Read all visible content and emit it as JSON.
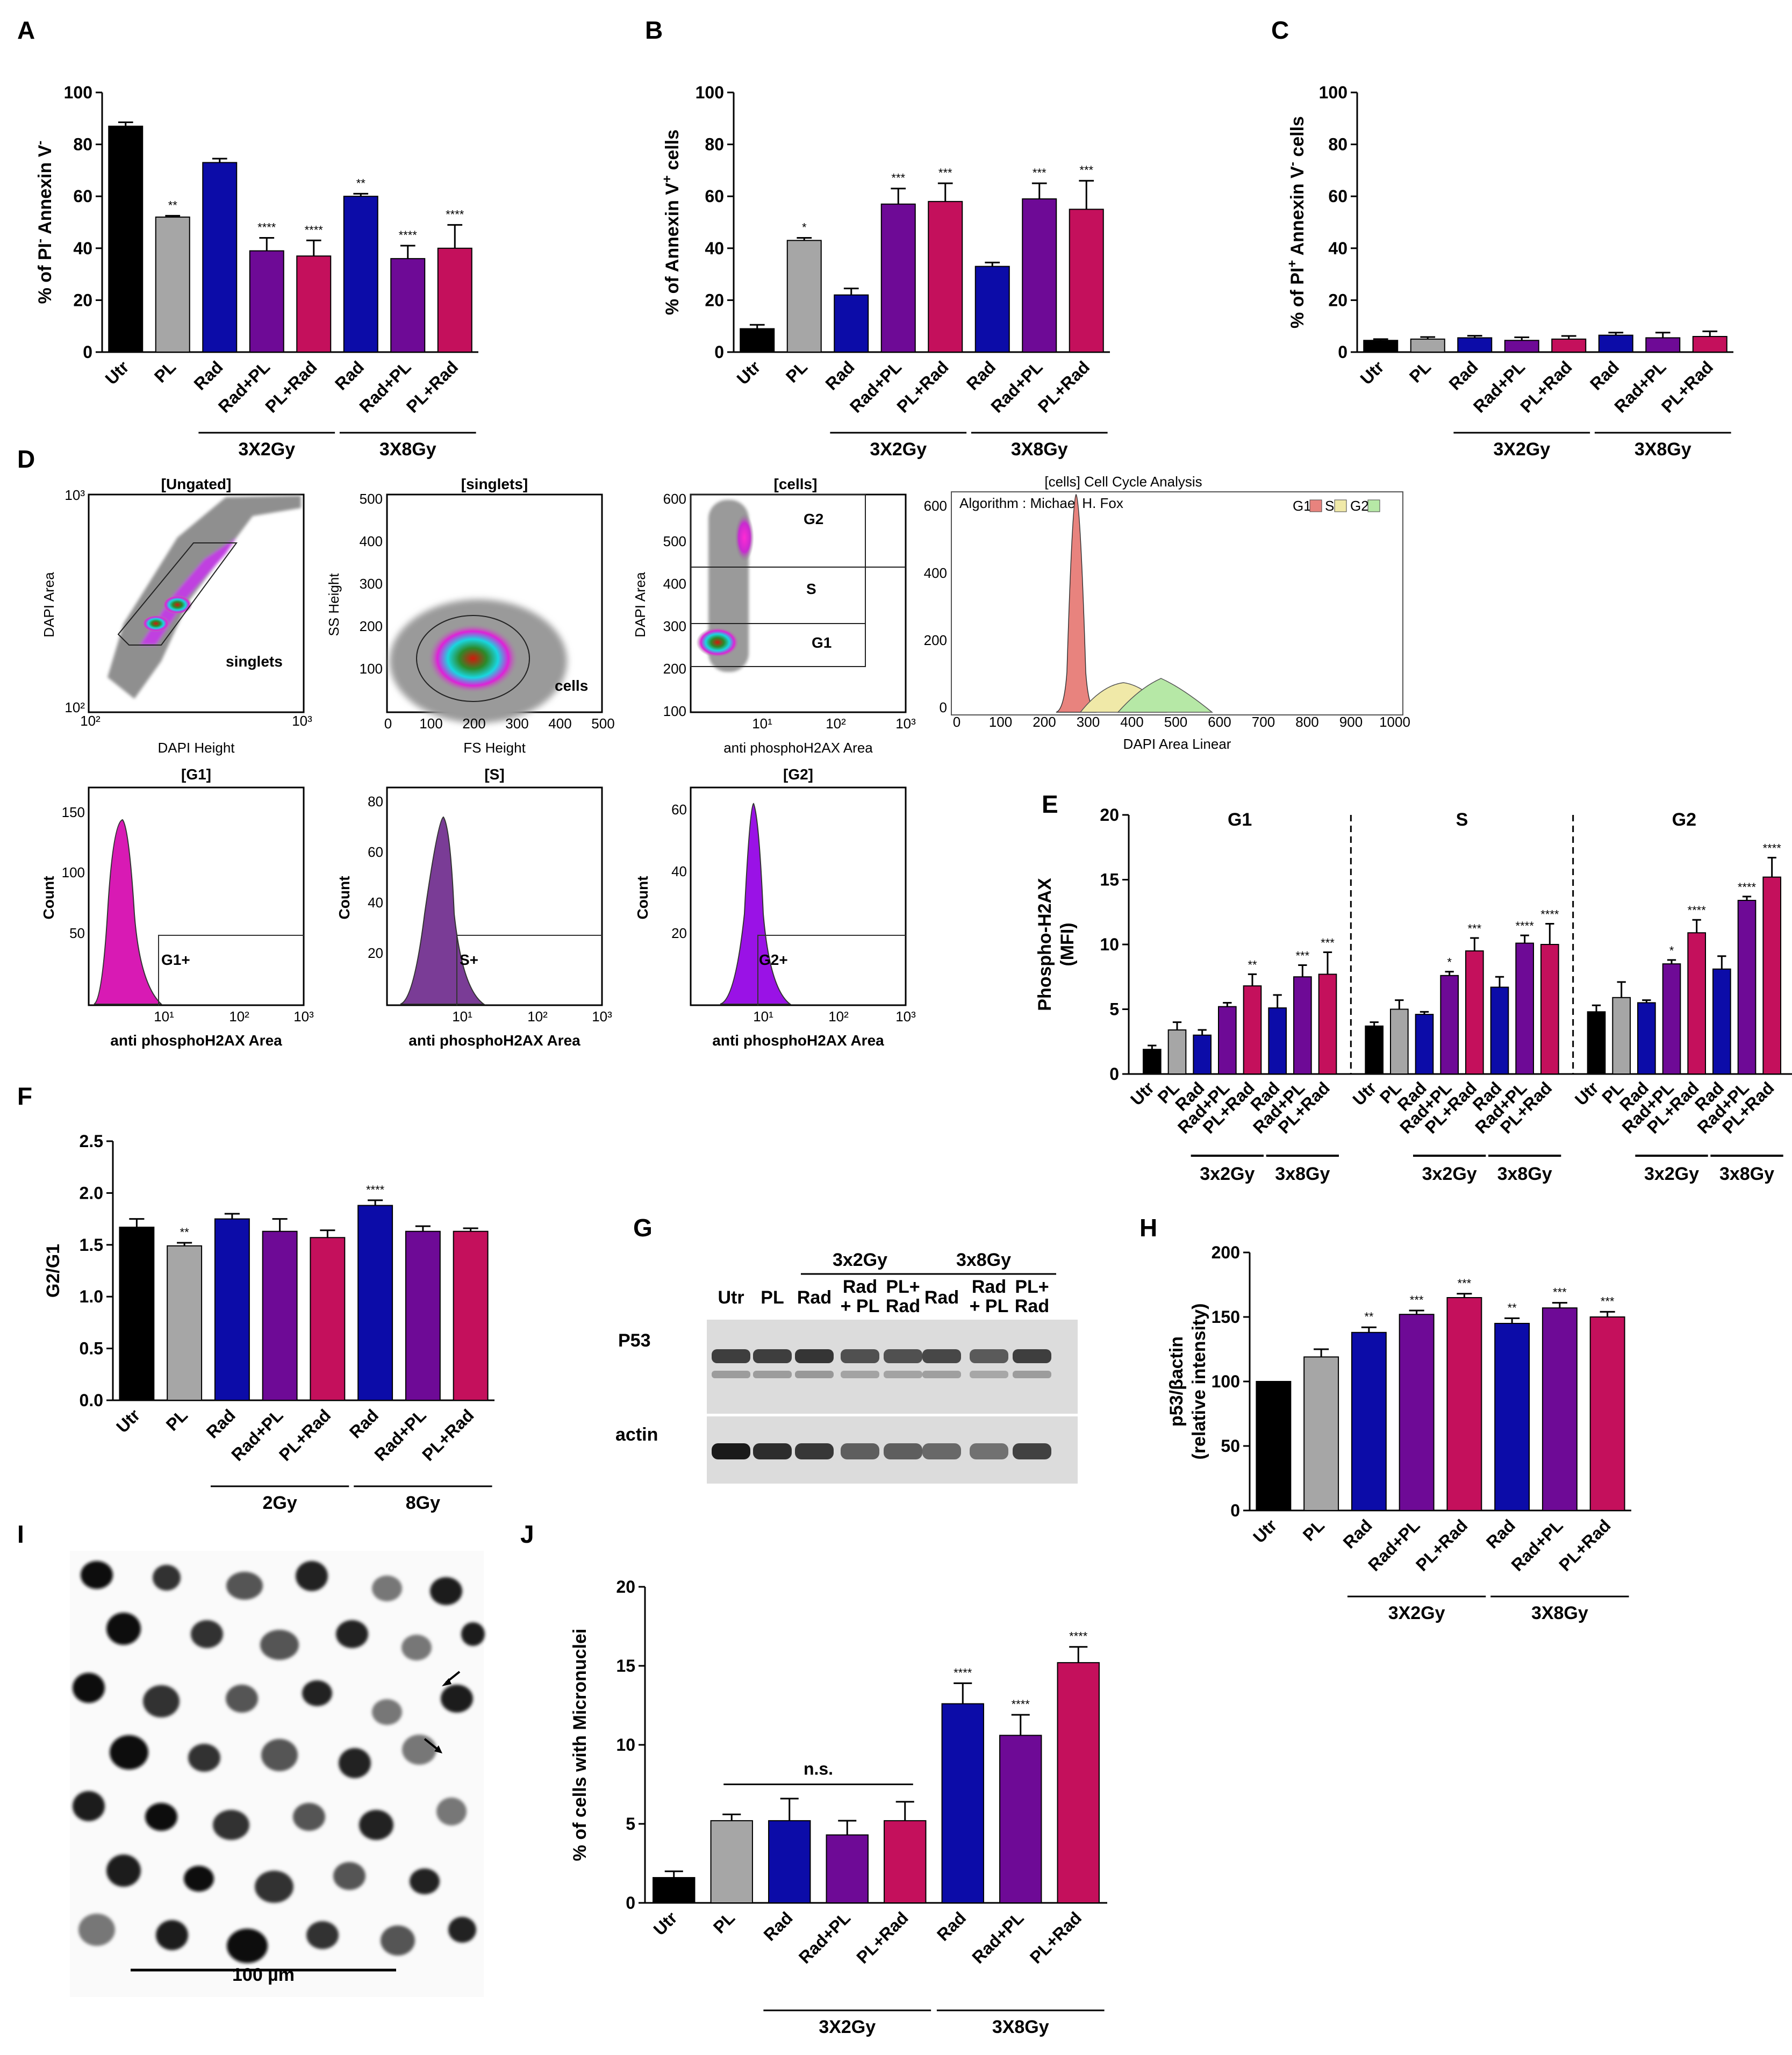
{
  "colors": {
    "black": "#000000",
    "gray": "#a6a6a6",
    "blue": "#0c0ca8",
    "purple": "#6e0a96",
    "crimson": "#c4105c",
    "magenta": "#d81ab4",
    "violet": "#7a3c96",
    "bright_violet": "#9a12e6"
  },
  "panel_letters": {
    "A": "A",
    "B": "B",
    "C": "C",
    "D": "D",
    "E": "E",
    "F": "F",
    "G": "G",
    "H": "H",
    "I": "I",
    "J": "J"
  },
  "flow": {
    "p1": {
      "title": "[Ungated]",
      "ylabel": "DAPI Area",
      "xlabel": "DAPI Height",
      "gate": "singlets",
      "y_ticks": [
        "10³",
        "10²"
      ],
      "x_ticks": [
        "10²",
        "10³"
      ]
    },
    "p2": {
      "title": "[singlets]",
      "ylabel": "SS Height",
      "xlabel": "FS Height",
      "gate": "cells",
      "y_ticks": [
        "500",
        "400",
        "300",
        "200",
        "100"
      ],
      "x_ticks": [
        "0",
        "100",
        "200",
        "300",
        "400",
        "500"
      ]
    },
    "p3": {
      "title": "[cells]",
      "ylabel": "DAPI Area",
      "xlabel": "anti phosphoH2AX Area",
      "gates": [
        "G2",
        "S",
        "G1"
      ],
      "y_ticks": [
        "600",
        "500",
        "400",
        "300",
        "200",
        "100"
      ],
      "x_ticks": [
        "10¹",
        "10²",
        "10³"
      ]
    },
    "p4": {
      "title": "[cells] Cell Cycle Analysis",
      "algorithm": "Algorithm : Michael H. Fox",
      "legend": [
        "G1",
        "S",
        "G2"
      ],
      "xlabel": "DAPI Area Linear",
      "y_ticks": [
        "600",
        "400",
        "200",
        "0"
      ],
      "x_ticks": [
        "0",
        "100",
        "200",
        "300",
        "400",
        "500",
        "600",
        "700",
        "800",
        "900",
        "1000"
      ]
    },
    "h1": {
      "title": "[G1]",
      "ylabel": "Count",
      "xlabel": "anti phosphoH2AX Area",
      "gate": "G1+",
      "y_ticks": [
        "150",
        "100",
        "50"
      ],
      "x_ticks": [
        "10¹",
        "10²",
        "10³"
      ]
    },
    "h2": {
      "title": "[S]",
      "ylabel": "Count",
      "xlabel": "anti phosphoH2AX Area",
      "gate": "S+",
      "y_ticks": [
        "80",
        "60",
        "40",
        "20"
      ],
      "x_ticks": [
        "10¹",
        "10²",
        "10³"
      ]
    },
    "h3": {
      "title": "[G2]",
      "ylabel": "Count",
      "xlabel": "anti phosphoH2AX Area",
      "gate": "G2+",
      "y_ticks": [
        "60",
        "40",
        "20"
      ],
      "x_ticks": [
        "10¹",
        "10²",
        "10³"
      ]
    }
  },
  "blot": {
    "groups": [
      "3x2Gy",
      "3x8Gy"
    ],
    "lanes": [
      "Utr",
      "PL",
      "Rad",
      "Rad\n+ PL",
      "PL+\nRad",
      "Rad",
      "Rad\n+ PL",
      "PL+\nRad"
    ],
    "rows": [
      "P53",
      "actin"
    ]
  },
  "micrograph": {
    "scale_label": "100 µm"
  },
  "chart_data": [
    {
      "id": "A",
      "type": "bar",
      "title": "",
      "ylabel_parts": [
        "% of  PI",
        "-",
        " Annexin V",
        "-"
      ],
      "ylim": [
        0,
        100
      ],
      "yticks": [
        "0",
        "20",
        "40",
        "60",
        "80",
        "100"
      ],
      "categories": [
        "Utr",
        "PL",
        "Rad",
        "Rad+PL",
        "PL+Rad",
        "Rad",
        "Rad+PL",
        "PL+Rad"
      ],
      "values": [
        87,
        52,
        73,
        39,
        37,
        60,
        36,
        40
      ],
      "errors": [
        1.5,
        0.5,
        1.5,
        5,
        6,
        1,
        5,
        9
      ],
      "color_keys": [
        "black",
        "gray",
        "blue",
        "purple",
        "crimson",
        "blue",
        "purple",
        "crimson"
      ],
      "significance": [
        "",
        "**",
        "",
        "****",
        "****",
        "**",
        "****",
        "****"
      ],
      "groups": [
        {
          "label": "3X2Gy",
          "span": [
            2,
            4
          ]
        },
        {
          "label": "3X8Gy",
          "span": [
            5,
            7
          ]
        }
      ]
    },
    {
      "id": "B",
      "type": "bar",
      "title": "",
      "ylabel_parts": [
        "% of Annexin V",
        "+",
        " cells"
      ],
      "ylim": [
        0,
        100
      ],
      "yticks": [
        "0",
        "20",
        "40",
        "60",
        "80",
        "100"
      ],
      "categories": [
        "Utr",
        "PL",
        "Rad",
        "Rad+PL",
        "PL+Rad",
        "Rad",
        "Rad+PL",
        "PL+Rad"
      ],
      "values": [
        9,
        43,
        22,
        57,
        58,
        33,
        59,
        55
      ],
      "errors": [
        1.5,
        1,
        2.5,
        6,
        7,
        1.5,
        6,
        11
      ],
      "color_keys": [
        "black",
        "gray",
        "blue",
        "purple",
        "crimson",
        "blue",
        "purple",
        "crimson"
      ],
      "significance": [
        "",
        "*",
        "",
        "***",
        "***",
        "",
        "***",
        "***"
      ],
      "groups": [
        {
          "label": "3X2Gy",
          "span": [
            2,
            4
          ]
        },
        {
          "label": "3X8Gy",
          "span": [
            5,
            7
          ]
        }
      ]
    },
    {
      "id": "C",
      "type": "bar",
      "title": "",
      "ylabel_parts": [
        "% of PI",
        "+",
        " Annexin V",
        "-",
        " cells"
      ],
      "ylim": [
        0,
        100
      ],
      "yticks": [
        "0",
        "20",
        "40",
        "60",
        "80",
        "100"
      ],
      "categories": [
        "Utr",
        "PL",
        "Rad",
        "Rad+PL",
        "PL+Rad",
        "Rad",
        "Rad+PL",
        "PL+Rad"
      ],
      "values": [
        4.5,
        5,
        5.5,
        4.5,
        5,
        6.5,
        5.5,
        6
      ],
      "errors": [
        0.5,
        0.8,
        0.8,
        1.2,
        1.2,
        1,
        2,
        2
      ],
      "color_keys": [
        "black",
        "gray",
        "blue",
        "purple",
        "crimson",
        "blue",
        "purple",
        "crimson"
      ],
      "significance": [
        "",
        "",
        "",
        "",
        "",
        "",
        "",
        ""
      ],
      "groups": [
        {
          "label": "3X2Gy",
          "span": [
            2,
            4
          ]
        },
        {
          "label": "3X8Gy",
          "span": [
            5,
            7
          ]
        }
      ]
    },
    {
      "id": "E",
      "type": "bar",
      "title": "",
      "ylabel_lines": [
        "Phospho-H2AX",
        "(MFI)"
      ],
      "ylim": [
        0,
        20
      ],
      "yticks": [
        "0",
        "5",
        "10",
        "15",
        "20"
      ],
      "panels": [
        {
          "label": "G1",
          "categories": [
            "Utr",
            "PL",
            "Rad",
            "Rad+PL",
            "PL+Rad",
            "Rad",
            "Rad+PL",
            "PL+Rad"
          ],
          "values": [
            1.9,
            3.4,
            3.0,
            5.2,
            6.8,
            5.1,
            7.5,
            7.7
          ],
          "errors": [
            0.3,
            0.6,
            0.4,
            0.3,
            0.9,
            1.0,
            0.9,
            1.7
          ],
          "significance": [
            "",
            "",
            "",
            "",
            "**",
            "",
            "***",
            "***"
          ]
        },
        {
          "label": "S",
          "categories": [
            "Utr",
            "PL",
            "Rad",
            "Rad+PL",
            "PL+Rad",
            "Rad",
            "Rad+PL",
            "PL+Rad"
          ],
          "values": [
            3.7,
            5.0,
            4.6,
            7.6,
            9.5,
            6.7,
            10.1,
            10.0
          ],
          "errors": [
            0.3,
            0.7,
            0.2,
            0.3,
            1.0,
            0.8,
            0.6,
            1.6
          ],
          "significance": [
            "",
            "",
            "",
            "*",
            "***",
            "",
            "****",
            "****"
          ]
        },
        {
          "label": "G2",
          "categories": [
            "Utr",
            "PL",
            "Rad",
            "Rad+PL",
            "PL+Rad",
            "Rad",
            "Rad+PL",
            "PL+Rad"
          ],
          "values": [
            4.8,
            5.9,
            5.5,
            8.5,
            10.9,
            8.1,
            13.4,
            15.2
          ],
          "errors": [
            0.5,
            1.2,
            0.2,
            0.3,
            1.0,
            1.0,
            0.3,
            1.5
          ],
          "significance": [
            "",
            "",
            "",
            "*",
            "****",
            "",
            "****",
            "****"
          ]
        }
      ],
      "color_keys": [
        "black",
        "gray",
        "blue",
        "purple",
        "crimson",
        "blue",
        "purple",
        "crimson"
      ],
      "groups": [
        {
          "label": "3x2Gy",
          "span": [
            2,
            4
          ]
        },
        {
          "label": "3x8Gy",
          "span": [
            5,
            7
          ]
        }
      ]
    },
    {
      "id": "F",
      "type": "bar",
      "title": "",
      "ylabel_parts": [
        "G2/G1"
      ],
      "ylim": [
        0,
        2.5
      ],
      "yticks": [
        "0.0",
        "0.5",
        "1.0",
        "1.5",
        "2.0",
        "2.5"
      ],
      "categories": [
        "Utr",
        "PL",
        "Rad",
        "Rad+PL",
        "PL+Rad",
        "Rad",
        "Rad+PL",
        "PL+Rad"
      ],
      "values": [
        1.67,
        1.49,
        1.75,
        1.63,
        1.57,
        1.88,
        1.63,
        1.63
      ],
      "errors": [
        0.08,
        0.03,
        0.05,
        0.12,
        0.07,
        0.05,
        0.05,
        0.03
      ],
      "color_keys": [
        "black",
        "gray",
        "blue",
        "purple",
        "crimson",
        "blue",
        "purple",
        "crimson"
      ],
      "significance": [
        "",
        "**",
        "",
        "",
        "",
        "****",
        "",
        ""
      ],
      "groups": [
        {
          "label": "2Gy",
          "span": [
            2,
            4
          ]
        },
        {
          "label": "8Gy",
          "span": [
            5,
            7
          ]
        }
      ]
    },
    {
      "id": "H",
      "type": "bar",
      "title": "",
      "ylabel_lines": [
        "p53/βactin",
        "(relative intensity)"
      ],
      "ylim": [
        0,
        200
      ],
      "yticks": [
        "0",
        "50",
        "100",
        "150",
        "200"
      ],
      "categories": [
        "Utr",
        "PL",
        "Rad",
        "Rad+PL",
        "PL+Rad",
        "Rad",
        "Rad+PL",
        "PL+Rad"
      ],
      "values": [
        100,
        119,
        138,
        152,
        165,
        145,
        157,
        150
      ],
      "errors": [
        0,
        6,
        4,
        3,
        3,
        4,
        4,
        4
      ],
      "color_keys": [
        "black",
        "gray",
        "blue",
        "purple",
        "crimson",
        "blue",
        "purple",
        "crimson"
      ],
      "significance": [
        "",
        "",
        "**",
        "***",
        "***",
        "**",
        "***",
        "***"
      ],
      "groups": [
        {
          "label": "3X2Gy",
          "span": [
            2,
            4
          ]
        },
        {
          "label": "3X8Gy",
          "span": [
            5,
            7
          ]
        }
      ]
    },
    {
      "id": "J",
      "type": "bar",
      "title": "",
      "ylabel_parts": [
        "% of cells with Micronuclei"
      ],
      "ylim": [
        0,
        20
      ],
      "yticks": [
        "0",
        "5",
        "10",
        "15",
        "20"
      ],
      "categories": [
        "Utr",
        "PL",
        "Rad",
        "Rad+PL",
        "PL+Rad",
        "Rad",
        "Rad+PL",
        "PL+Rad"
      ],
      "values": [
        1.6,
        5.2,
        5.2,
        4.3,
        5.2,
        12.6,
        10.6,
        15.2
      ],
      "errors": [
        0.4,
        0.4,
        1.4,
        0.9,
        1.2,
        1.3,
        1.3,
        1.0
      ],
      "color_keys": [
        "black",
        "gray",
        "blue",
        "purple",
        "crimson",
        "blue",
        "purple",
        "crimson"
      ],
      "significance": [
        "",
        "",
        "",
        "",
        "",
        "****",
        "****",
        "****"
      ],
      "annotation": {
        "label": "n.s.",
        "span": [
          1,
          4
        ]
      },
      "groups": [
        {
          "label": "3X2Gy",
          "span": [
            2,
            4
          ]
        },
        {
          "label": "3X8Gy",
          "span": [
            5,
            7
          ]
        }
      ]
    }
  ]
}
